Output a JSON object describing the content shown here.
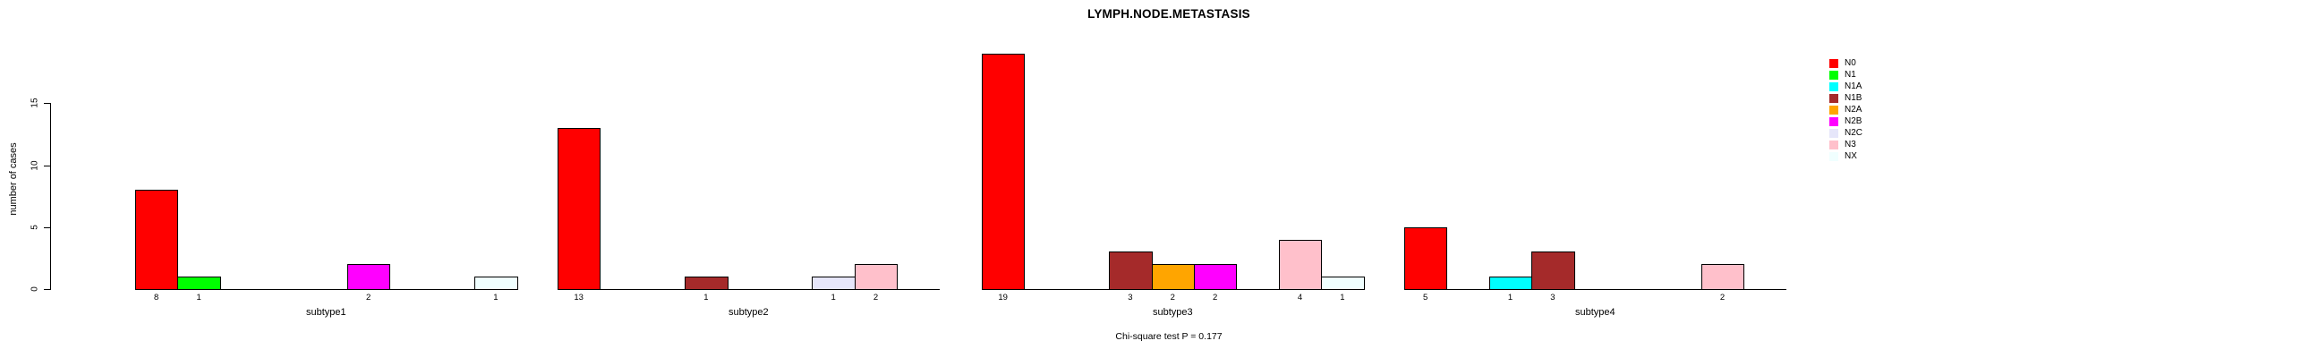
{
  "title": "LYMPH.NODE.METASTASIS",
  "footnote": "Chi-square test P = 0.177",
  "y_axis": {
    "label": "number of cases",
    "ticks": [
      "0",
      "5",
      "10",
      "15"
    ]
  },
  "legend": {
    "entries": [
      {
        "label": "N0",
        "color": "#FF0000"
      },
      {
        "label": "N1",
        "color": "#00FF00"
      },
      {
        "label": "N1A",
        "color": "#00FFFF"
      },
      {
        "label": "N1B",
        "color": "#A52A2A"
      },
      {
        "label": "N2A",
        "color": "#FFA500"
      },
      {
        "label": "N2B",
        "color": "#FF00FF"
      },
      {
        "label": "N2C",
        "color": "#E6E6FA"
      },
      {
        "label": "N3",
        "color": "#FFC0CB"
      },
      {
        "label": "NX",
        "color": "#F0FFFF"
      }
    ]
  },
  "chart_data": {
    "type": "bar",
    "title": "LYMPH.NODE.METASTASIS",
    "xlabel": "",
    "ylabel": "number of cases",
    "ylim": [
      0,
      19
    ],
    "yticks": [
      0,
      5,
      10,
      15
    ],
    "grid": false,
    "legend_position": "right",
    "categories": [
      "N0",
      "N1",
      "N1A",
      "N1B",
      "N2A",
      "N2B",
      "N2C",
      "N3",
      "NX"
    ],
    "colors": {
      "N0": "#FF0000",
      "N1": "#00FF00",
      "N1A": "#00FFFF",
      "N1B": "#A52A2A",
      "N2A": "#FFA500",
      "N2B": "#FF00FF",
      "N2C": "#E6E6FA",
      "N3": "#FFC0CB",
      "NX": "#F0FFFF"
    },
    "groups": [
      {
        "label": "subtype1",
        "values": {
          "N0": 8,
          "N1": 1,
          "N2B": 2,
          "NX": 1
        }
      },
      {
        "label": "subtype2",
        "values": {
          "N0": 13,
          "N1B": 1,
          "N2C": 1,
          "N3": 2
        }
      },
      {
        "label": "subtype3",
        "values": {
          "N0": 19,
          "N1B": 3,
          "N2A": 2,
          "N2B": 2,
          "N3": 4,
          "NX": 1
        }
      },
      {
        "label": "subtype4",
        "values": {
          "N0": 5,
          "N1A": 1,
          "N1B": 3,
          "N3": 2
        }
      }
    ],
    "annotation": "Chi-square test P = 0.177"
  }
}
